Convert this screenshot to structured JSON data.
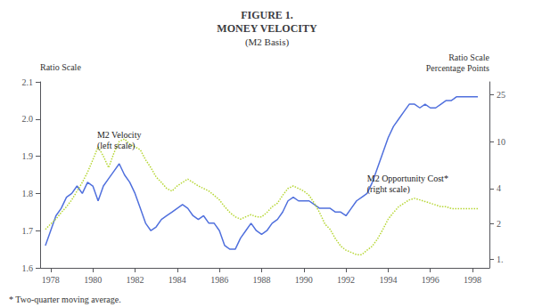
{
  "chart_data": {
    "type": "line",
    "title": [
      "FIGURE 1.",
      "MONEY VELOCITY"
    ],
    "subtitle": "(M2 Basis)",
    "ylabel": "Ratio Scale",
    "y2label": [
      "Ratio Scale",
      "Percentage Points"
    ],
    "footnote": "* Two-quarter moving average.",
    "annotations": [
      {
        "text": "M2 Velocity\n(left scale)",
        "x": 1980.2,
        "y": 1.915,
        "anchor": "bottom"
      },
      {
        "text": "M2 Opportunity Cost*\n(right scale)",
        "x": 1993.0,
        "y": 1.855,
        "anchor": "top"
      }
    ],
    "grid": false,
    "log": "y2",
    "xlim": [
      1977.5,
      1998.8
    ],
    "xticks": [
      1978,
      1980,
      1982,
      1984,
      1986,
      1988,
      1990,
      1992,
      1994,
      1996,
      1998
    ],
    "ylim": [
      1.6,
      2.1
    ],
    "yticks": [
      1.6,
      1.7,
      1.8,
      1.9,
      {
        "value": 2.0,
        "label": "2.0"
      },
      2.1
    ],
    "y2lim": [
      0.85,
      32
    ],
    "y2ticks": [
      {
        "value": 1.0,
        "label": "1."
      },
      2,
      4,
      10,
      25
    ],
    "x": [
      1977.75,
      1978.0,
      1978.25,
      1978.5,
      1978.75,
      1979.0,
      1979.25,
      1979.5,
      1979.75,
      1980.0,
      1980.25,
      1980.5,
      1980.75,
      1981.0,
      1981.25,
      1981.5,
      1981.75,
      1982.0,
      1982.25,
      1982.5,
      1982.75,
      1983.0,
      1983.25,
      1983.5,
      1983.75,
      1984.0,
      1984.25,
      1984.5,
      1984.75,
      1985.0,
      1985.25,
      1985.5,
      1985.75,
      1986.0,
      1986.25,
      1986.5,
      1986.75,
      1987.0,
      1987.25,
      1987.5,
      1987.75,
      1988.0,
      1988.25,
      1988.5,
      1988.75,
      1989.0,
      1989.25,
      1989.5,
      1989.75,
      1990.0,
      1990.25,
      1990.5,
      1990.75,
      1991.0,
      1991.25,
      1991.5,
      1991.75,
      1992.0,
      1992.25,
      1992.5,
      1992.75,
      1993.0,
      1993.25,
      1993.5,
      1993.75,
      1994.0,
      1994.25,
      1994.5,
      1994.75,
      1995.0,
      1995.25,
      1995.5,
      1995.75,
      1996.0,
      1996.25,
      1996.5,
      1996.75,
      1997.0,
      1997.25,
      1997.5,
      1997.75,
      1998.0,
      1998.25
    ],
    "series": [
      {
        "line_style": "solid",
        "values": [
          1.66,
          1.7,
          1.74,
          1.76,
          1.79,
          1.8,
          1.82,
          1.8,
          1.83,
          1.82,
          1.78,
          1.82,
          1.84,
          1.86,
          1.88,
          1.85,
          1.83,
          1.8,
          1.76,
          1.72,
          1.7,
          1.71,
          1.73,
          1.74,
          1.75,
          1.76,
          1.77,
          1.76,
          1.74,
          1.73,
          1.74,
          1.72,
          1.72,
          1.7,
          1.66,
          1.65,
          1.65,
          1.68,
          1.7,
          1.72,
          1.7,
          1.69,
          1.7,
          1.72,
          1.73,
          1.75,
          1.78,
          1.79,
          1.78,
          1.78,
          1.78,
          1.77,
          1.76,
          1.76,
          1.76,
          1.75,
          1.75,
          1.74,
          1.76,
          1.78,
          1.79,
          1.8,
          1.83,
          1.87,
          1.91,
          1.95,
          1.98,
          2.0,
          2.02,
          2.04,
          2.04,
          2.03,
          2.04,
          2.03,
          2.03,
          2.04,
          2.05,
          2.05,
          2.06,
          2.06,
          2.06,
          2.06,
          2.06
        ]
      },
      {
        "line_style": "dotted",
        "axis": "y2",
        "values": [
          1.8,
          2.0,
          2.2,
          2.5,
          2.8,
          3.2,
          3.8,
          4.5,
          5.5,
          7.0,
          9.0,
          7.5,
          6.0,
          8.0,
          10.0,
          10.5,
          9.5,
          9.0,
          8.5,
          7.0,
          6.0,
          5.0,
          4.5,
          4.0,
          3.8,
          4.2,
          4.5,
          4.8,
          4.5,
          4.2,
          4.0,
          3.8,
          3.5,
          3.2,
          2.8,
          2.5,
          2.3,
          2.2,
          2.3,
          2.4,
          2.3,
          2.3,
          2.5,
          2.8,
          3.0,
          3.5,
          4.0,
          4.2,
          4.0,
          3.8,
          3.5,
          3.0,
          2.5,
          2.0,
          1.8,
          1.5,
          1.3,
          1.2,
          1.15,
          1.1,
          1.1,
          1.2,
          1.3,
          1.5,
          1.8,
          2.2,
          2.5,
          2.8,
          3.0,
          3.2,
          3.3,
          3.2,
          3.1,
          3.0,
          2.9,
          2.8,
          2.8,
          2.7,
          2.7,
          2.7,
          2.7,
          2.7,
          2.7
        ]
      }
    ]
  }
}
